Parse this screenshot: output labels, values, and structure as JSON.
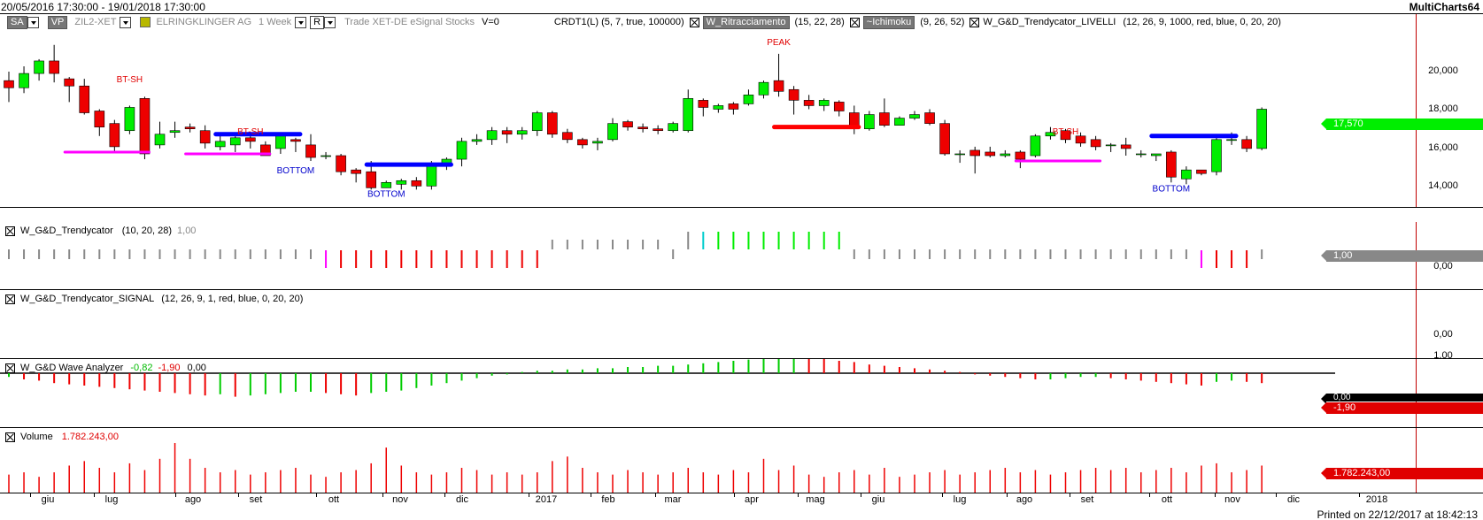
{
  "window": {
    "date_range": "20/05/2016 17:30:00 - 19/01/2018 17:30:00",
    "app_name": "MultiCharts64",
    "printed_on": "Printed on 22/12/2017 at 18:42:13"
  },
  "main_legend": {
    "sa_label": "SA",
    "vp_label": "VP",
    "symbol": "ZIL2-XET",
    "company": "ELRINGKLINGER AG",
    "interval": "1 Week",
    "r_label": "R",
    "trade_info": "Trade  XET-DE  eSignal  Stocks",
    "volume_flag": "V=0",
    "crdt_indicator": "CRDT1(L) (5,  7,  true,  100000)",
    "ritracciamento_label": "W_Ritracciamento",
    "ritracciamento_params": "(15,  22,  28)",
    "ichimoku_label": "~Ichimoku",
    "ichimoku_params": "(9,  26,  52)",
    "livelli_label": "W_G&D_Trendycator_LIVELLI",
    "livelli_params": "(12,  26,  9,  1000,  red,  blue,  0,  20,  20)"
  },
  "price_axis": {
    "ticks": [
      "20,000",
      "18,000",
      "16,000",
      "14,000"
    ],
    "last_price": "17,570",
    "last_price_color": "#00ee00"
  },
  "chart_data": {
    "type": "candlestick",
    "candles": [
      [
        19.2,
        18.8,
        19.7,
        18.0
      ],
      [
        18.8,
        19.6,
        20.0,
        18.5
      ],
      [
        19.6,
        20.3,
        20.4,
        19.2
      ],
      [
        20.3,
        19.6,
        21.2,
        19.1
      ],
      [
        19.3,
        18.9,
        19.4,
        18.0
      ],
      [
        18.9,
        17.4,
        19.3,
        17.3
      ],
      [
        17.5,
        16.6,
        17.6,
        16.1
      ],
      [
        16.8,
        15.5,
        17.0,
        15.2
      ],
      [
        16.4,
        17.7,
        17.8,
        16.2
      ],
      [
        18.2,
        15.1,
        18.3,
        14.8
      ],
      [
        15.6,
        16.2,
        16.9,
        15.4
      ],
      [
        16.3,
        16.4,
        16.9,
        16.0
      ],
      [
        16.6,
        16.5,
        16.8,
        16.3
      ],
      [
        16.4,
        15.7,
        16.7,
        15.4
      ],
      [
        15.5,
        15.8,
        16.2,
        15.3
      ],
      [
        15.6,
        16.0,
        16.2,
        15.2
      ],
      [
        16.0,
        15.8,
        16.1,
        15.4
      ],
      [
        15.6,
        15.0,
        15.8,
        15.2
      ],
      [
        15.4,
        16.1,
        16.2,
        15.1
      ],
      [
        15.9,
        15.8,
        16.0,
        15.2
      ],
      [
        15.6,
        14.9,
        16.2,
        14.7
      ],
      [
        15.0,
        15.0,
        15.2,
        14.8
      ],
      [
        15.0,
        14.1,
        15.1,
        13.9
      ],
      [
        14.2,
        14.0,
        14.3,
        13.5
      ],
      [
        14.1,
        13.2,
        14.7,
        13.1
      ],
      [
        13.2,
        13.5,
        13.6,
        13.2
      ],
      [
        13.4,
        13.6,
        13.7,
        13.1
      ],
      [
        13.6,
        13.3,
        13.8,
        13.1
      ],
      [
        13.3,
        14.5,
        14.7,
        13.1
      ],
      [
        14.4,
        14.8,
        14.9,
        14.2
      ],
      [
        14.8,
        15.8,
        16.0,
        14.4
      ],
      [
        15.8,
        15.9,
        16.2,
        15.6
      ],
      [
        15.9,
        16.4,
        16.6,
        15.6
      ],
      [
        16.4,
        16.2,
        16.6,
        15.7
      ],
      [
        16.2,
        16.4,
        16.6,
        15.9
      ],
      [
        16.4,
        17.4,
        17.5,
        16.1
      ],
      [
        17.4,
        16.2,
        17.5,
        16.0
      ],
      [
        16.3,
        15.9,
        16.5,
        15.7
      ],
      [
        15.9,
        15.6,
        16.0,
        15.4
      ],
      [
        15.7,
        15.8,
        16.0,
        15.3
      ],
      [
        15.9,
        16.8,
        17.1,
        15.8
      ],
      [
        16.9,
        16.6,
        17.0,
        16.4
      ],
      [
        16.6,
        16.5,
        16.8,
        16.3
      ],
      [
        16.5,
        16.4,
        16.7,
        16.2
      ],
      [
        16.4,
        16.8,
        16.9,
        16.3
      ],
      [
        16.4,
        18.2,
        18.7,
        16.3
      ],
      [
        18.1,
        17.7,
        18.2,
        17.2
      ],
      [
        17.6,
        17.8,
        17.9,
        17.4
      ],
      [
        17.9,
        17.6,
        18.0,
        17.3
      ],
      [
        17.9,
        18.4,
        18.7,
        17.8
      ],
      [
        18.4,
        19.1,
        19.2,
        18.2
      ],
      [
        19.2,
        18.6,
        20.7,
        18.3
      ],
      [
        18.7,
        18.1,
        18.9,
        17.3
      ],
      [
        18.1,
        17.8,
        18.4,
        17.6
      ],
      [
        17.8,
        18.1,
        18.2,
        17.5
      ],
      [
        18.0,
        17.5,
        18.1,
        17.2
      ],
      [
        17.4,
        16.5,
        17.8,
        16.2
      ],
      [
        16.5,
        17.3,
        17.5,
        16.4
      ],
      [
        17.4,
        16.7,
        18.2,
        16.6
      ],
      [
        16.7,
        17.1,
        17.2,
        16.7
      ],
      [
        17.1,
        17.3,
        17.5,
        17.0
      ],
      [
        17.4,
        16.8,
        17.6,
        16.7
      ],
      [
        16.8,
        15.1,
        17.0,
        15.0
      ],
      [
        15.1,
        15.1,
        15.3,
        14.6
      ],
      [
        15.3,
        15.0,
        15.5,
        14.0
      ],
      [
        15.2,
        15.0,
        15.5,
        14.9
      ],
      [
        15.0,
        15.1,
        15.3,
        14.9
      ],
      [
        15.2,
        14.8,
        15.3,
        14.3
      ],
      [
        15.0,
        16.1,
        16.2,
        14.9
      ],
      [
        16.1,
        16.3,
        16.6,
        15.9
      ],
      [
        16.4,
        15.9,
        16.5,
        15.7
      ],
      [
        16.1,
        15.7,
        16.3,
        15.5
      ],
      [
        15.9,
        15.5,
        16.1,
        15.3
      ],
      [
        15.6,
        15.6,
        15.7,
        15.2
      ],
      [
        15.6,
        15.4,
        16.0,
        15.0
      ],
      [
        15.1,
        15.1,
        15.3,
        14.9
      ],
      [
        15.0,
        15.1,
        15.1,
        14.7
      ],
      [
        15.2,
        13.8,
        15.3,
        13.5
      ],
      [
        13.7,
        14.2,
        14.4,
        13.4
      ],
      [
        14.2,
        14.0,
        14.2,
        13.9
      ],
      [
        14.1,
        15.9,
        16.1,
        13.9
      ],
      [
        15.9,
        15.9,
        16.3,
        15.6
      ],
      [
        15.9,
        15.4,
        16.1,
        15.2
      ],
      [
        15.4,
        17.6,
        17.7,
        15.3
      ]
    ],
    "markers": [
      {
        "text": "BT-SH",
        "bar": 8,
        "price": 19.1,
        "color": "#e00000"
      },
      {
        "text": "BT-SH",
        "bar": 16,
        "price": 16.2,
        "color": "#e00000"
      },
      {
        "text": "BT-SH",
        "bar": 70,
        "price": 16.2,
        "color": "#e00000"
      },
      {
        "text": "BOTTOM",
        "bar": 19,
        "price": 14.0,
        "color": "#0000cc"
      },
      {
        "text": "BOTTOM",
        "bar": 25,
        "price": 12.7,
        "color": "#0000cc"
      },
      {
        "text": "BOTTOM",
        "bar": 77,
        "price": 13.0,
        "color": "#0000cc"
      },
      {
        "text": "PEAK",
        "bar": 51,
        "price": 21.2,
        "color": "#e00000"
      }
    ],
    "levels": [
      {
        "from": 4,
        "to": 9,
        "price": 15.2,
        "color": "#ff00ff"
      },
      {
        "from": 12,
        "to": 17,
        "price": 15.1,
        "color": "#ff00ff"
      },
      {
        "from": 14,
        "to": 19,
        "price": 16.2,
        "color": "#0000ff"
      },
      {
        "from": 24,
        "to": 29,
        "price": 14.5,
        "color": "#0000ff"
      },
      {
        "from": 51,
        "to": 56,
        "price": 16.6,
        "color": "#ff0000"
      },
      {
        "from": 67,
        "to": 72,
        "price": 14.7,
        "color": "#ff00ff"
      },
      {
        "from": 76,
        "to": 81,
        "price": 16.1,
        "color": "#0000ff"
      }
    ],
    "colors": {
      "up": "#00ee00",
      "down": "#ee0000"
    }
  },
  "trendycator": {
    "name": "W_G&D_Trendycator",
    "params": "(10,  20,  28)",
    "value": "1,00",
    "axis_ticks": [
      "0,00"
    ],
    "tag_value": "1,00",
    "bars": "GGGGGGGGGGGGGGGGGGGGGMRRRRRRRRRRRRRRGGGGGGGGGGCGGGGGGGGGGGGGGGGGGGGGGGGGGGGGGGGMRRRG"
  },
  "trendycator_signal": {
    "name": "W_G&D_Trendycator_SIGNAL",
    "params": "(12,  26,  9,  1,  red,  blue,  0,  20,  20)",
    "axis_ticks": [
      "0,00",
      "1,00"
    ]
  },
  "wave_analyzer": {
    "name": "W_G&D Wave Analyzer",
    "value1": "-0,82",
    "value2": "-1,90",
    "value3": "0,00",
    "tag1": "0,00",
    "tag2": "-1,90",
    "values": [
      -0.3,
      -0.5,
      -0.6,
      -0.8,
      -0.9,
      -1.0,
      -1.1,
      -1.2,
      -1.3,
      -1.4,
      -1.5,
      -1.6,
      -1.7,
      -1.8,
      -1.7,
      -1.9,
      -1.8,
      -1.7,
      -1.6,
      -1.5,
      -1.5,
      -1.6,
      -1.7,
      -1.8,
      -1.6,
      -1.5,
      -1.4,
      -1.2,
      -1.0,
      -0.8,
      -0.6,
      -0.4,
      -0.2,
      -0.1,
      0.1,
      0.2,
      0.2,
      0.3,
      0.3,
      0.4,
      0.4,
      0.5,
      0.5,
      0.6,
      0.6,
      0.7,
      0.8,
      0.9,
      1.0,
      1.1,
      1.2,
      1.3,
      1.4,
      1.3,
      1.2,
      1.0,
      0.9,
      0.7,
      0.6,
      0.5,
      0.4,
      0.3,
      0.2,
      0.1,
      -0.1,
      -0.2,
      -0.3,
      -0.4,
      -0.5,
      -0.5,
      -0.4,
      -0.3,
      -0.3,
      -0.4,
      -0.5,
      -0.6,
      -0.7,
      -0.8,
      -0.9,
      -1.0,
      -0.7,
      -0.6,
      -0.7,
      -0.8
    ]
  },
  "volume": {
    "name": "Volume",
    "value": "1.782.243,00",
    "tag": "1.782.243,00",
    "values": [
      0.8,
      0.9,
      0.7,
      0.9,
      1.2,
      1.4,
      1.1,
      0.9,
      1.3,
      1.0,
      1.5,
      2.2,
      1.5,
      1.1,
      0.9,
      1.0,
      0.8,
      0.9,
      1.0,
      1.1,
      0.8,
      0.7,
      0.9,
      1.0,
      1.3,
      2.0,
      1.2,
      0.9,
      0.8,
      0.9,
      1.1,
      1.0,
      0.8,
      0.9,
      0.8,
      0.9,
      1.4,
      1.6,
      1.1,
      0.9,
      0.8,
      1.0,
      0.9,
      0.8,
      0.9,
      1.1,
      0.9,
      0.8,
      1.0,
      0.9,
      1.5,
      1.0,
      1.2,
      0.8,
      0.7,
      0.9,
      1.0,
      0.8,
      1.1,
      0.7,
      0.8,
      0.9,
      1.0,
      0.8,
      0.9,
      1.0,
      1.1,
      0.9,
      1.0,
      0.8,
      0.9,
      1.0,
      1.1,
      1.0,
      1.1,
      0.9,
      1.0,
      1.1,
      0.9,
      1.2,
      1.3,
      0.9,
      1.0,
      1.2
    ]
  },
  "time_axis": [
    "giu",
    "lug",
    "ago",
    "set",
    "ott",
    "nov",
    "dic",
    "2017",
    "feb",
    "mar",
    "apr",
    "mag",
    "giu",
    "lug",
    "ago",
    "set",
    "ott",
    "nov",
    "dic",
    "2018"
  ]
}
